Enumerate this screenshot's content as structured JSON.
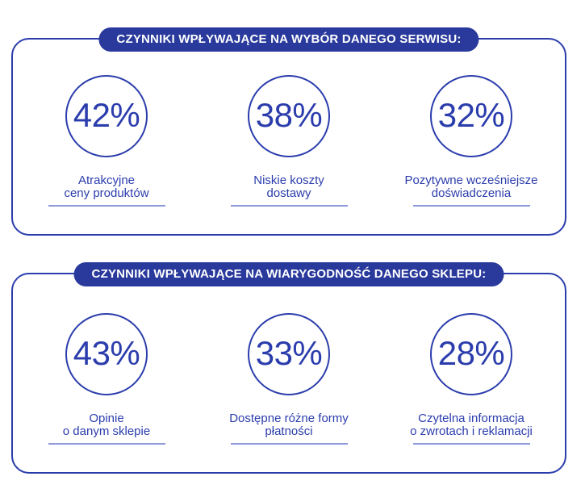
{
  "colors": {
    "ink": "#2b3dac",
    "pill-bg": "#2a3a9c",
    "pill-text": "#ffffff",
    "underline": "#8d99d8",
    "bg": "#ffffff"
  },
  "sections": [
    {
      "title": "CZYNNIKI WPŁYWAJĄCE NA WYBÓR DANEGO SERWISU:",
      "factors": [
        {
          "value": "42%",
          "label_line1": "Atrakcyjne",
          "label_line2": "ceny produktów"
        },
        {
          "value": "38%",
          "label_line1": "Niskie koszty",
          "label_line2": "dostawy"
        },
        {
          "value": "32%",
          "label_line1": "Pozytywne wcześniejsze",
          "label_line2": "doświadczenia"
        }
      ]
    },
    {
      "title": "CZYNNIKI WPŁYWAJĄCE NA WIARYGODNOŚĆ DANEGO SKLEPU:",
      "factors": [
        {
          "value": "43%",
          "label_line1": "Opinie",
          "label_line2": "o danym sklepie"
        },
        {
          "value": "33%",
          "label_line1": "Dostępne różne formy",
          "label_line2": "płatności"
        },
        {
          "value": "28%",
          "label_line1": "Czytelna informacja",
          "label_line2": "o zwrotach i reklamacji"
        }
      ]
    }
  ],
  "chart_data": [
    {
      "type": "bar",
      "title": "CZYNNIKI WPŁYWAJĄCE NA WYBÓR DANEGO SERWISU:",
      "categories": [
        "Atrakcyjne ceny produktów",
        "Niskie koszty dostawy",
        "Pozytywne wcześniejsze doświadczenia"
      ],
      "values": [
        42,
        38,
        32
      ],
      "unit": "%",
      "ylim": [
        0,
        100
      ],
      "legend": "none",
      "grid": false
    },
    {
      "type": "bar",
      "title": "CZYNNIKI WPŁYWAJĄCE NA WIARYGODNOŚĆ DANEGO SKLEPU:",
      "categories": [
        "Opinie o danym sklepie",
        "Dostępne różne formy płatności",
        "Czytelna informacja o zwrotach i reklamacji"
      ],
      "values": [
        43,
        33,
        28
      ],
      "unit": "%",
      "ylim": [
        0,
        100
      ],
      "legend": "none",
      "grid": false
    }
  ]
}
